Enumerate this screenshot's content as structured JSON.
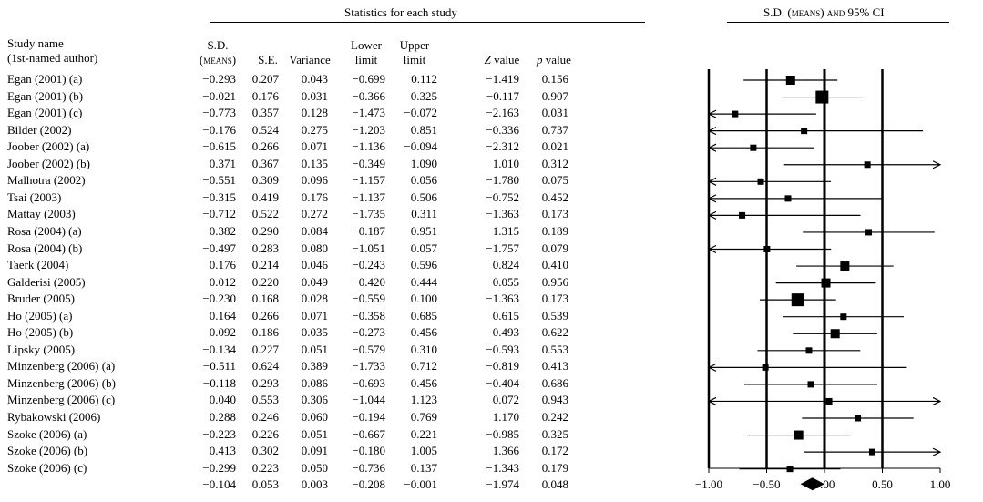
{
  "stats_header": "Statistics for each study",
  "plot_header": "S.D. (means) and 95% CI",
  "columns": [
    {
      "key": "name",
      "line1": "Study name",
      "line2": "(1st-named author)"
    },
    {
      "key": "sd",
      "line1": "S.D.",
      "line2": "(means)"
    },
    {
      "key": "se",
      "line1": "",
      "line2": "S.E."
    },
    {
      "key": "var",
      "line1": "",
      "line2": "Variance"
    },
    {
      "key": "lower",
      "line1": "Lower",
      "line2": "limit"
    },
    {
      "key": "upper",
      "line1": "Upper",
      "line2": "limit"
    },
    {
      "key": "z",
      "line1": "",
      "line2": "Z value"
    },
    {
      "key": "p",
      "line1": "",
      "line2": "p value"
    }
  ],
  "rows": [
    {
      "name": "Egan (2001) (a)",
      "sd": "−0.293",
      "se": "0.207",
      "var": "0.043",
      "lower": "−0.699",
      "upper": "0.112",
      "z": "−1.419",
      "p": "0.156"
    },
    {
      "name": "Egan (2001) (b)",
      "sd": "−0.021",
      "se": "0.176",
      "var": "0.031",
      "lower": "−0.366",
      "upper": "0.325",
      "z": "−0.117",
      "p": "0.907"
    },
    {
      "name": "Egan (2001) (c)",
      "sd": "−0.773",
      "se": "0.357",
      "var": "0.128",
      "lower": "−1.473",
      "upper": "−0.072",
      "z": "−2.163",
      "p": "0.031"
    },
    {
      "name": "Bilder (2002)",
      "sd": "−0.176",
      "se": "0.524",
      "var": "0.275",
      "lower": "−1.203",
      "upper": "0.851",
      "z": "−0.336",
      "p": "0.737"
    },
    {
      "name": "Joober (2002) (a)",
      "sd": "−0.615",
      "se": "0.266",
      "var": "0.071",
      "lower": "−1.136",
      "upper": "−0.094",
      "z": "−2.312",
      "p": "0.021"
    },
    {
      "name": "Joober (2002) (b)",
      "sd": "0.371",
      "se": "0.367",
      "var": "0.135",
      "lower": "−0.349",
      "upper": "1.090",
      "z": "1.010",
      "p": "0.312"
    },
    {
      "name": "Malhotra (2002)",
      "sd": "−0.551",
      "se": "0.309",
      "var": "0.096",
      "lower": "−1.157",
      "upper": "0.056",
      "z": "−1.780",
      "p": "0.075"
    },
    {
      "name": "Tsai (2003)",
      "sd": "−0.315",
      "se": "0.419",
      "var": "0.176",
      "lower": "−1.137",
      "upper": "0.506",
      "z": "−0.752",
      "p": "0.452"
    },
    {
      "name": "Mattay (2003)",
      "sd": "−0.712",
      "se": "0.522",
      "var": "0.272",
      "lower": "−1.735",
      "upper": "0.311",
      "z": "−1.363",
      "p": "0.173"
    },
    {
      "name": "Rosa (2004) (a)",
      "sd": "0.382",
      "se": "0.290",
      "var": "0.084",
      "lower": "−0.187",
      "upper": "0.951",
      "z": "1.315",
      "p": "0.189"
    },
    {
      "name": "Rosa (2004) (b)",
      "sd": "−0.497",
      "se": "0.283",
      "var": "0.080",
      "lower": "−1.051",
      "upper": "0.057",
      "z": "−1.757",
      "p": "0.079"
    },
    {
      "name": "Taerk (2004)",
      "sd": "0.176",
      "se": "0.214",
      "var": "0.046",
      "lower": "−0.243",
      "upper": "0.596",
      "z": "0.824",
      "p": "0.410"
    },
    {
      "name": "Galderisi (2005)",
      "sd": "0.012",
      "se": "0.220",
      "var": "0.049",
      "lower": "−0.420",
      "upper": "0.444",
      "z": "0.055",
      "p": "0.956"
    },
    {
      "name": "Bruder (2005)",
      "sd": "−0.230",
      "se": "0.168",
      "var": "0.028",
      "lower": "−0.559",
      "upper": "0.100",
      "z": "−1.363",
      "p": "0.173"
    },
    {
      "name": "Ho (2005) (a)",
      "sd": "0.164",
      "se": "0.266",
      "var": "0.071",
      "lower": "−0.358",
      "upper": "0.685",
      "z": "0.615",
      "p": "0.539"
    },
    {
      "name": "Ho (2005) (b)",
      "sd": "0.092",
      "se": "0.186",
      "var": "0.035",
      "lower": "−0.273",
      "upper": "0.456",
      "z": "0.493",
      "p": "0.622"
    },
    {
      "name": "Lipsky (2005)",
      "sd": "−0.134",
      "se": "0.227",
      "var": "0.051",
      "lower": "−0.579",
      "upper": "0.310",
      "z": "−0.593",
      "p": "0.553"
    },
    {
      "name": "Minzenberg (2006) (a)",
      "sd": "−0.511",
      "se": "0.624",
      "var": "0.389",
      "lower": "−1.733",
      "upper": "0.712",
      "z": "−0.819",
      "p": "0.413"
    },
    {
      "name": "Minzenberg (2006) (b)",
      "sd": "−0.118",
      "se": "0.293",
      "var": "0.086",
      "lower": "−0.693",
      "upper": "0.456",
      "z": "−0.404",
      "p": "0.686"
    },
    {
      "name": "Minzenberg (2006) (c)",
      "sd": "0.040",
      "se": "0.553",
      "var": "0.306",
      "lower": "−1.044",
      "upper": "1.123",
      "z": "0.072",
      "p": "0.943"
    },
    {
      "name": "Rybakowski (2006)",
      "sd": "0.288",
      "se": "0.246",
      "var": "0.060",
      "lower": "−0.194",
      "upper": "0.769",
      "z": "1.170",
      "p": "0.242"
    },
    {
      "name": "Szoke (2006) (a)",
      "sd": "−0.223",
      "se": "0.226",
      "var": "0.051",
      "lower": "−0.667",
      "upper": "0.221",
      "z": "−0.985",
      "p": "0.325"
    },
    {
      "name": "Szoke (2006) (b)",
      "sd": "0.413",
      "se": "0.302",
      "var": "0.091",
      "lower": "−0.180",
      "upper": "1.005",
      "z": "1.366",
      "p": "0.172"
    },
    {
      "name": "Szoke (2006) (c)",
      "sd": "−0.299",
      "se": "0.223",
      "var": "0.050",
      "lower": "−0.736",
      "upper": "0.137",
      "z": "−1.343",
      "p": "0.179"
    }
  ],
  "summary": {
    "name": "",
    "sd": "−0.104",
    "se": "0.053",
    "var": "0.003",
    "lower": "−0.208",
    "upper": "−0.001",
    "z": "−1.974",
    "p": "0.048"
  },
  "chart_data": {
    "type": "forest",
    "title": "S.D. (means) and 95% CI",
    "xlim": [
      -1.0,
      1.0
    ],
    "xticks": [
      -1.0,
      -0.5,
      0.0,
      0.5,
      1.0
    ],
    "xtick_labels": [
      "−1.00",
      "−0.50",
      "0.00",
      "0.50",
      "1.00"
    ],
    "reference_lines": [
      -1.0,
      -0.5,
      0.0,
      0.5
    ],
    "studies": [
      {
        "name": "Egan (2001) (a)",
        "estimate": -0.293,
        "lower": -0.699,
        "upper": 0.112,
        "weight": "medium"
      },
      {
        "name": "Egan (2001) (b)",
        "estimate": -0.021,
        "lower": -0.366,
        "upper": 0.325,
        "weight": "large"
      },
      {
        "name": "Egan (2001) (c)",
        "estimate": -0.773,
        "lower": -1.473,
        "upper": -0.072,
        "weight": "small"
      },
      {
        "name": "Bilder (2002)",
        "estimate": -0.176,
        "lower": -1.203,
        "upper": 0.851,
        "weight": "small"
      },
      {
        "name": "Joober (2002) (a)",
        "estimate": -0.615,
        "lower": -1.136,
        "upper": -0.094,
        "weight": "small"
      },
      {
        "name": "Joober (2002) (b)",
        "estimate": 0.371,
        "lower": -0.349,
        "upper": 1.09,
        "weight": "small"
      },
      {
        "name": "Malhotra (2002)",
        "estimate": -0.551,
        "lower": -1.157,
        "upper": 0.056,
        "weight": "small"
      },
      {
        "name": "Tsai (2003)",
        "estimate": -0.315,
        "lower": -1.137,
        "upper": 0.506,
        "weight": "small"
      },
      {
        "name": "Mattay (2003)",
        "estimate": -0.712,
        "lower": -1.735,
        "upper": 0.311,
        "weight": "small"
      },
      {
        "name": "Rosa (2004) (a)",
        "estimate": 0.382,
        "lower": -0.187,
        "upper": 0.951,
        "weight": "small"
      },
      {
        "name": "Rosa (2004) (b)",
        "estimate": -0.497,
        "lower": -1.051,
        "upper": 0.057,
        "weight": "small"
      },
      {
        "name": "Taerk (2004)",
        "estimate": 0.176,
        "lower": -0.243,
        "upper": 0.596,
        "weight": "medium"
      },
      {
        "name": "Galderisi (2005)",
        "estimate": 0.012,
        "lower": -0.42,
        "upper": 0.444,
        "weight": "medium"
      },
      {
        "name": "Bruder (2005)",
        "estimate": -0.23,
        "lower": -0.559,
        "upper": 0.1,
        "weight": "large"
      },
      {
        "name": "Ho (2005) (a)",
        "estimate": 0.164,
        "lower": -0.358,
        "upper": 0.685,
        "weight": "small"
      },
      {
        "name": "Ho (2005) (b)",
        "estimate": 0.092,
        "lower": -0.273,
        "upper": 0.456,
        "weight": "medium"
      },
      {
        "name": "Lipsky (2005)",
        "estimate": -0.134,
        "lower": -0.579,
        "upper": 0.31,
        "weight": "small"
      },
      {
        "name": "Minzenberg (2006) (a)",
        "estimate": -0.511,
        "lower": -1.733,
        "upper": 0.712,
        "weight": "small"
      },
      {
        "name": "Minzenberg (2006) (b)",
        "estimate": -0.118,
        "lower": -0.693,
        "upper": 0.456,
        "weight": "small"
      },
      {
        "name": "Minzenberg (2006) (c)",
        "estimate": 0.04,
        "lower": -1.044,
        "upper": 1.123,
        "weight": "small"
      },
      {
        "name": "Rybakowski (2006)",
        "estimate": 0.288,
        "lower": -0.194,
        "upper": 0.769,
        "weight": "small"
      },
      {
        "name": "Szoke (2006) (a)",
        "estimate": -0.223,
        "lower": -0.667,
        "upper": 0.221,
        "weight": "medium"
      },
      {
        "name": "Szoke (2006) (b)",
        "estimate": 0.413,
        "lower": -0.18,
        "upper": 1.005,
        "weight": "small"
      },
      {
        "name": "Szoke (2006) (c)",
        "estimate": -0.299,
        "lower": -0.736,
        "upper": 0.137,
        "weight": "small"
      }
    ],
    "summary": {
      "estimate": -0.104,
      "lower": -0.208,
      "upper": -0.001
    }
  }
}
